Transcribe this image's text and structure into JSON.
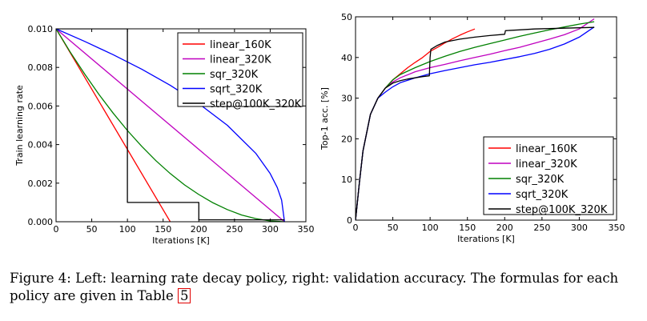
{
  "chart_data": [
    {
      "type": "line",
      "title": "",
      "xlabel": "Iterations [K]",
      "ylabel": "Train learning rate",
      "xlim": [
        0,
        350
      ],
      "ylim": [
        0,
        0.01
      ],
      "xticks": [
        0,
        50,
        100,
        150,
        200,
        250,
        300,
        350
      ],
      "xtick_labels": [
        "0",
        "50",
        "100",
        "150",
        "200",
        "250",
        "300",
        "350"
      ],
      "yticks": [
        0.0,
        0.002,
        0.004,
        0.006,
        0.008,
        0.01
      ],
      "ytick_labels": [
        "0.000",
        "0.002",
        "0.004",
        "0.006",
        "0.008",
        "0.010"
      ],
      "legend_position": "top-right",
      "series": [
        {
          "name": "linear_160K",
          "color": "#ff0000",
          "x": [
            0,
            160
          ],
          "y": [
            0.01,
            0.0
          ]
        },
        {
          "name": "linear_320K",
          "color": "#bf00bf",
          "x": [
            0,
            320
          ],
          "y": [
            0.01,
            0.0
          ]
        },
        {
          "name": "sqr_320K",
          "color": "#008000",
          "x": [
            0,
            20,
            40,
            60,
            80,
            100,
            120,
            140,
            160,
            180,
            200,
            220,
            240,
            260,
            280,
            300,
            320
          ],
          "y": [
            0.01,
            0.00879,
            0.00766,
            0.0066,
            0.00563,
            0.00473,
            0.00391,
            0.00316,
            0.0025,
            0.00191,
            0.00141,
            0.00098,
            0.00063,
            0.00035,
            0.00016,
            4e-05,
            0.0
          ]
        },
        {
          "name": "sqrt_320K",
          "color": "#0000ff",
          "x": [
            0,
            40,
            80,
            120,
            160,
            200,
            240,
            280,
            300,
            310,
            316,
            320
          ],
          "y": [
            0.01,
            0.00935,
            0.00866,
            0.00791,
            0.00707,
            0.00612,
            0.005,
            0.00354,
            0.0025,
            0.00177,
            0.00112,
            0.0
          ]
        },
        {
          "name": "step@100K_320K",
          "color": "#000000",
          "x": [
            0,
            100,
            100,
            200,
            200,
            320
          ],
          "y": [
            0.01,
            0.01,
            0.001,
            0.001,
            0.0001,
            0.0001
          ]
        }
      ]
    },
    {
      "type": "line",
      "title": "",
      "xlabel": "Iterations [K]",
      "ylabel": "Top-1 acc. [%]",
      "xlim": [
        0,
        350
      ],
      "ylim": [
        0,
        50
      ],
      "xticks": [
        0,
        50,
        100,
        150,
        200,
        250,
        300,
        350
      ],
      "xtick_labels": [
        "0",
        "50",
        "100",
        "150",
        "200",
        "250",
        "300",
        "350"
      ],
      "yticks": [
        0,
        10,
        20,
        30,
        40,
        50
      ],
      "ytick_labels": [
        "0",
        "10",
        "20",
        "30",
        "40",
        "50"
      ],
      "legend_position": "lower-right",
      "series": [
        {
          "name": "linear_160K",
          "color": "#ff0000",
          "x": [
            0,
            5,
            10,
            20,
            30,
            40,
            50,
            60,
            70,
            80,
            90,
            100,
            110,
            120,
            130,
            140,
            150,
            160
          ],
          "y": [
            0,
            9,
            17,
            26,
            30,
            32.5,
            34.5,
            36,
            37.5,
            38.8,
            40,
            41.5,
            42.5,
            43.6,
            44.6,
            45.5,
            46.3,
            47
          ]
        },
        {
          "name": "linear_320K",
          "color": "#bf00bf",
          "x": [
            0,
            5,
            10,
            20,
            30,
            40,
            50,
            60,
            80,
            100,
            120,
            140,
            160,
            180,
            200,
            220,
            240,
            260,
            280,
            300,
            320
          ],
          "y": [
            0,
            9,
            17,
            26,
            30,
            32.5,
            34,
            35,
            36.5,
            37.5,
            38.3,
            39.2,
            40,
            40.8,
            41.7,
            42.5,
            43.5,
            44.5,
            45.6,
            47,
            49.5
          ]
        },
        {
          "name": "sqr_320K",
          "color": "#008000",
          "x": [
            0,
            5,
            10,
            20,
            30,
            40,
            50,
            60,
            80,
            100,
            120,
            140,
            160,
            180,
            200,
            220,
            240,
            260,
            280,
            300,
            320
          ],
          "y": [
            0,
            9,
            17,
            26,
            30,
            32.5,
            34.5,
            35.8,
            37.5,
            39,
            40.3,
            41.5,
            42.5,
            43.4,
            44.3,
            45.2,
            46,
            46.8,
            47.5,
            48.2,
            48.8
          ]
        },
        {
          "name": "sqrt_320K",
          "color": "#0000ff",
          "x": [
            0,
            5,
            10,
            20,
            30,
            40,
            50,
            60,
            80,
            100,
            120,
            140,
            160,
            180,
            200,
            220,
            240,
            260,
            280,
            300,
            320
          ],
          "y": [
            0,
            9,
            17,
            26,
            30,
            31.5,
            32.8,
            33.8,
            35,
            36,
            36.8,
            37.5,
            38.2,
            38.8,
            39.5,
            40.2,
            41,
            42,
            43.3,
            45,
            47.5
          ]
        },
        {
          "name": "step@100K_320K",
          "color": "#000000",
          "x": [
            0,
            5,
            10,
            20,
            30,
            40,
            50,
            60,
            70,
            80,
            90,
            99,
            100,
            101,
            110,
            120,
            140,
            160,
            180,
            200,
            201,
            220,
            240,
            260,
            280,
            300,
            320
          ],
          "y": [
            0,
            9,
            17,
            26,
            30,
            32.5,
            33.7,
            34.3,
            34.7,
            35,
            35.3,
            35.5,
            40,
            42,
            43,
            43.8,
            44.5,
            45,
            45.4,
            45.7,
            46.6,
            46.8,
            47,
            47.1,
            47.2,
            47.3,
            47.4
          ]
        }
      ]
    }
  ],
  "caption": {
    "text": "Figure 4: Left: learning rate decay policy, right: validation accuracy. The formulas for each policy are given in Table",
    "ref": "5"
  }
}
